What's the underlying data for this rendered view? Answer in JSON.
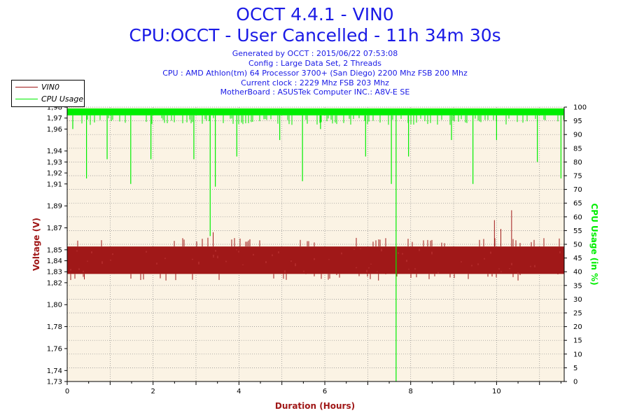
{
  "header": {
    "title": "OCCT 4.4.1 - VIN0",
    "subtitle": "CPU:OCCT - User Cancelled - 11h 34m 30s",
    "info_lines": [
      "Generated by OCCT : 2015/06/22 07:53:08",
      "Config : Large Data Set, 2 Threads",
      "CPU : AMD Athlon(tm) 64 Processor 3700+ (San Diego) 2200 Mhz FSB 200 Mhz",
      "Current clock : 2229 Mhz FSB 203 Mhz",
      "MotherBoard : ASUSTek Computer INC.: A8V-E SE"
    ]
  },
  "legend": {
    "placement": "top-left",
    "entries": [
      "VIN0",
      "CPU Usage"
    ]
  },
  "colors": {
    "voltage": "#a01818",
    "cpu": "#00ee00",
    "plot_bg": "#fbf3e4",
    "grid": "#888888"
  },
  "chart_data": {
    "type": "line",
    "xlabel": "Duration (Hours)",
    "ylabel": "Voltage (V)",
    "y2label": "CPU Usage (in %)",
    "xlim": [
      0,
      11.575
    ],
    "ylim": [
      1.73,
      1.98
    ],
    "y2lim": [
      0,
      100
    ],
    "x_ticks": [
      0,
      2,
      4,
      6,
      8,
      10
    ],
    "y_ticks": [
      "1,73",
      "1,74",
      "1,76",
      "1,78",
      "1,80",
      "1,82",
      "1,83",
      "1,84",
      "1,85",
      "1,87",
      "1,89",
      "1,91",
      "1,92",
      "1,93",
      "1,94",
      "1,96",
      "1,97",
      "1,98"
    ],
    "y_tick_values": [
      1.73,
      1.74,
      1.76,
      1.78,
      1.8,
      1.82,
      1.83,
      1.84,
      1.85,
      1.87,
      1.89,
      1.91,
      1.92,
      1.93,
      1.94,
      1.96,
      1.97,
      1.98
    ],
    "y2_ticks": [
      0,
      5,
      10,
      15,
      20,
      25,
      30,
      35,
      40,
      45,
      50,
      55,
      60,
      65,
      70,
      75,
      80,
      85,
      90,
      95,
      100
    ],
    "grid": true,
    "series": [
      {
        "name": "VIN0",
        "axis": "left",
        "band_low": 1.828,
        "band_high": 1.853,
        "spikes": [
          {
            "x": 10.35,
            "y": 1.886
          },
          {
            "x": 9.95,
            "y": 1.877
          },
          {
            "x": 10.1,
            "y": 1.869
          },
          {
            "x": 3.4,
            "y": 1.866
          },
          {
            "x": 0.4,
            "y": 1.823
          },
          {
            "x": 2.3,
            "y": 1.822
          },
          {
            "x": 7.25,
            "y": 1.822
          },
          {
            "x": 10.5,
            "y": 1.822
          }
        ]
      },
      {
        "name": "CPU Usage",
        "axis": "right",
        "band_low": 97,
        "band_high": 99.5,
        "drops": [
          {
            "x": 0.13,
            "y": 92
          },
          {
            "x": 0.45,
            "y": 74
          },
          {
            "x": 0.93,
            "y": 81
          },
          {
            "x": 1.48,
            "y": 72
          },
          {
            "x": 1.95,
            "y": 81
          },
          {
            "x": 2.95,
            "y": 81
          },
          {
            "x": 3.33,
            "y": 53
          },
          {
            "x": 3.45,
            "y": 71
          },
          {
            "x": 3.95,
            "y": 82
          },
          {
            "x": 4.95,
            "y": 88
          },
          {
            "x": 5.48,
            "y": 73
          },
          {
            "x": 5.9,
            "y": 92
          },
          {
            "x": 6.95,
            "y": 82
          },
          {
            "x": 7.55,
            "y": 72
          },
          {
            "x": 7.66,
            "y": 0
          },
          {
            "x": 7.95,
            "y": 82
          },
          {
            "x": 8.95,
            "y": 88
          },
          {
            "x": 9.45,
            "y": 72
          },
          {
            "x": 10.0,
            "y": 88
          },
          {
            "x": 10.95,
            "y": 80
          },
          {
            "x": 11.5,
            "y": 74
          }
        ]
      }
    ]
  }
}
